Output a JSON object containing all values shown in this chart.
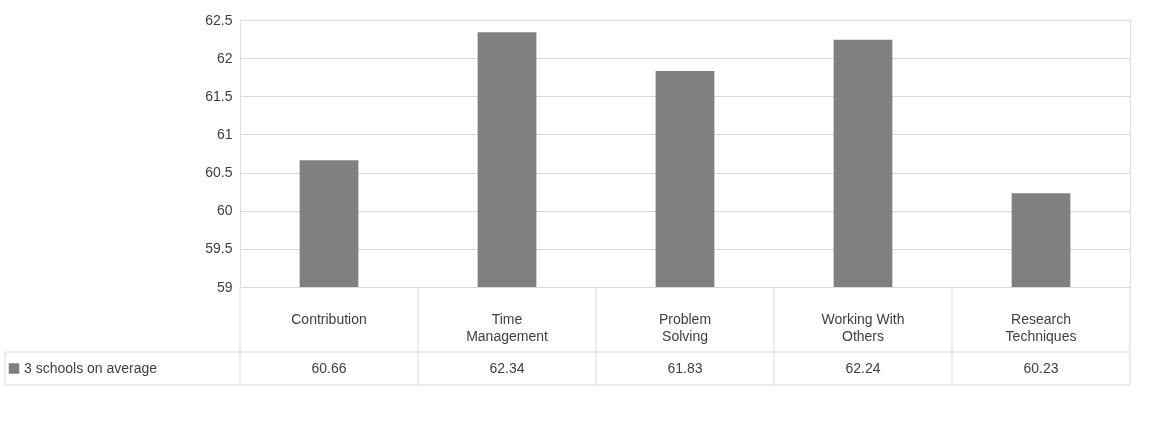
{
  "chart_data": {
    "type": "bar",
    "categories": [
      "Contribution",
      "Time Management",
      "Problem Solving",
      "Working With Others",
      "Research Techniques"
    ],
    "series": [
      {
        "name": "3 schools on average",
        "color": "#808080",
        "values": [
          60.66,
          62.34,
          61.83,
          62.24,
          60.23
        ]
      }
    ],
    "ylim": [
      59,
      62.5
    ],
    "yticks": [
      59,
      59.5,
      60,
      60.5,
      61,
      61.5,
      62,
      62.5
    ],
    "grid": "y",
    "legend": "bottom",
    "data_labels": true
  }
}
